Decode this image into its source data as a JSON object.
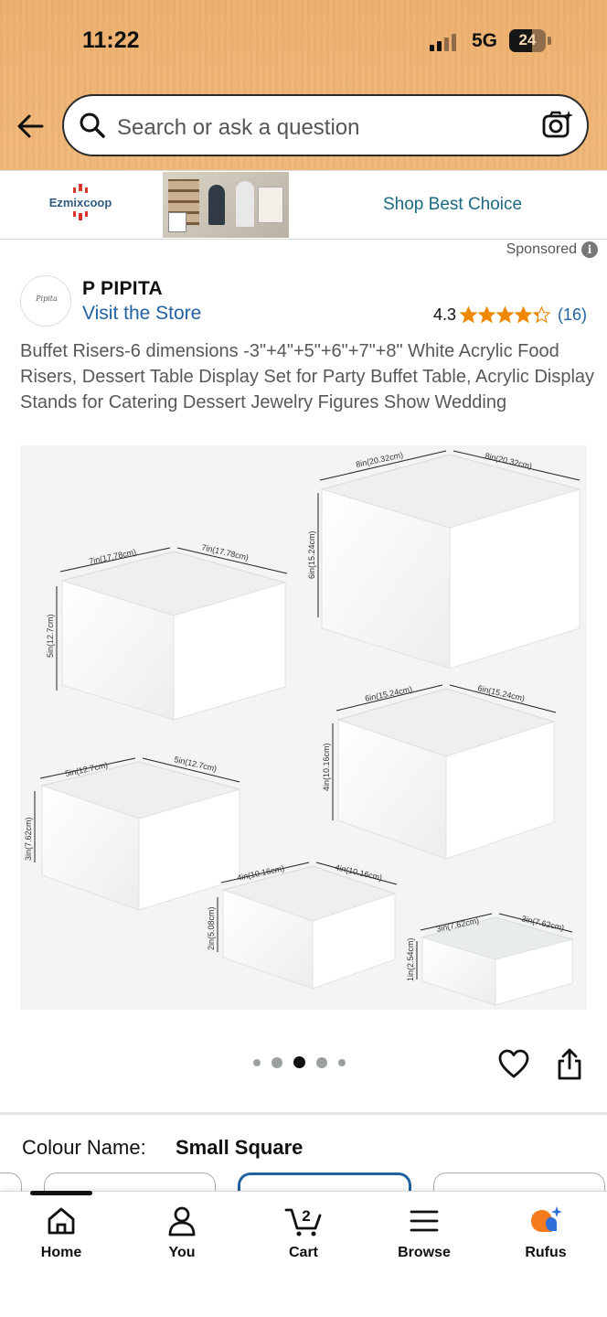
{
  "status_bar": {
    "time": "11:22",
    "network": "5G",
    "battery": "24"
  },
  "search": {
    "placeholder": "Search or ask a question"
  },
  "ad_banner": {
    "brand": "Ezmixcoop",
    "cta": "Shop Best Choice"
  },
  "sponsored_label": "Sponsored",
  "store": {
    "name": "P PIPITA",
    "avatar_text": "Pipita",
    "link": "Visit the Store",
    "rating": "4.3",
    "review_count": "(16)",
    "stars": 4.3
  },
  "product": {
    "title": "Buffet Risers-6 dimensions -3\"+4\"+5\"+6\"+7\"+8\" White Acrylic Food Risers, Dessert Table Display Set for Party Buffet Table, Acrylic Display Stands for Catering Dessert Jewelry Figures Show Wedding",
    "image_labels": {
      "box8": {
        "a": "8in(20.32cm)",
        "b": "8in(20.32cm)",
        "h": "6in(15.24cm)"
      },
      "box7": {
        "a": "7in(17.78cm)",
        "b": "7in(17.78cm)",
        "h": "5in(12.7cm)"
      },
      "box6": {
        "a": "6in(15.24cm)",
        "b": "6in(15.24cm)",
        "h": "4in(10.16cm)"
      },
      "box5": {
        "a": "5in(12.7cm)",
        "b": "5in(12.7cm)",
        "h": "3in(7.62cm)"
      },
      "box4": {
        "a": "4in(10.16cm)",
        "b": "4in(10.16cm)",
        "h": "2in(5.08cm)"
      },
      "box3": {
        "a": "3in(7.62cm)",
        "b": "3in(7.62cm)",
        "h": "1in(2.54cm)"
      }
    },
    "carousel": {
      "count": 5,
      "active_index": 2
    }
  },
  "variation": {
    "label": "Colour Name:",
    "value": "Small Square"
  },
  "bottom_nav": [
    {
      "label": "Home",
      "icon": "home-icon"
    },
    {
      "label": "You",
      "icon": "person-icon"
    },
    {
      "label": "Cart",
      "icon": "cart-icon",
      "badge": "2"
    },
    {
      "label": "Browse",
      "icon": "menu-icon"
    },
    {
      "label": "Rufus",
      "icon": "rufus-icon"
    }
  ],
  "colors": {
    "link": "#2162a1",
    "star": "#f08804",
    "header": "#ecb274"
  }
}
